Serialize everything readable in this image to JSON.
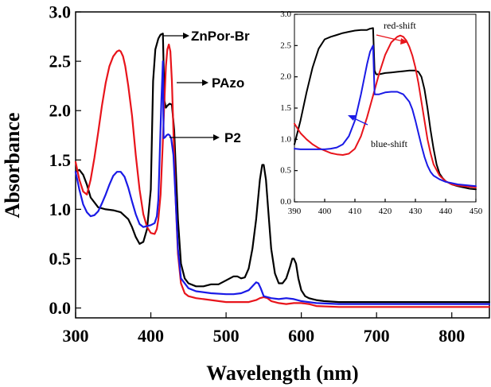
{
  "chart_data": {
    "type": "line",
    "xlabel": "Wavelength (nm)",
    "ylabel": "Absorbance",
    "xlim": [
      300,
      850
    ],
    "ylim": [
      -0.1,
      3.0
    ],
    "xticks": [
      "300",
      "400",
      "500",
      "600",
      "700",
      "800"
    ],
    "yticks": [
      "0.0",
      "0.5",
      "1.0",
      "1.5",
      "2.0",
      "2.5",
      "3.0"
    ],
    "grid": false,
    "colors": {
      "ZnPor-Br": "#000000",
      "PAzo": "#e8141b",
      "P2": "#1a1ae6"
    },
    "annotations": [
      {
        "text": "ZnPor-Br",
        "series": "ZnPor-Br"
      },
      {
        "text": "PAzo",
        "series": "PAzo"
      },
      {
        "text": "P2",
        "series": "P2"
      }
    ],
    "series": [
      {
        "name": "ZnPor-Br",
        "x": [
          300,
          305,
          310,
          315,
          320,
          330,
          340,
          350,
          360,
          370,
          375,
          380,
          385,
          390,
          395,
          400,
          403,
          406,
          410,
          413,
          416,
          418,
          420,
          422,
          425,
          428,
          431,
          433,
          436,
          440,
          445,
          450,
          460,
          470,
          480,
          490,
          500,
          505,
          510,
          515,
          520,
          525,
          530,
          535,
          540,
          545,
          548,
          550,
          553,
          556,
          560,
          565,
          570,
          575,
          580,
          585,
          588,
          590,
          593,
          596,
          600,
          605,
          610,
          615,
          620,
          630,
          650,
          700,
          750,
          800,
          850
        ],
        "y": [
          1.38,
          1.4,
          1.35,
          1.25,
          1.12,
          1.02,
          1.0,
          0.99,
          0.97,
          0.9,
          0.82,
          0.72,
          0.65,
          0.67,
          0.8,
          1.2,
          2.3,
          2.62,
          2.73,
          2.77,
          2.78,
          2.1,
          2.03,
          2.05,
          2.07,
          2.06,
          1.8,
          1.45,
          0.9,
          0.45,
          0.3,
          0.25,
          0.22,
          0.22,
          0.24,
          0.24,
          0.28,
          0.3,
          0.32,
          0.32,
          0.3,
          0.31,
          0.4,
          0.6,
          0.9,
          1.3,
          1.45,
          1.45,
          1.3,
          1.0,
          0.6,
          0.35,
          0.25,
          0.25,
          0.3,
          0.42,
          0.5,
          0.5,
          0.45,
          0.3,
          0.18,
          0.12,
          0.1,
          0.09,
          0.08,
          0.07,
          0.06,
          0.06,
          0.06,
          0.06,
          0.06
        ]
      },
      {
        "name": "PAzo",
        "x": [
          300,
          305,
          310,
          315,
          320,
          325,
          330,
          335,
          340,
          345,
          350,
          355,
          358,
          360,
          363,
          366,
          370,
          375,
          380,
          385,
          390,
          395,
          400,
          405,
          408,
          410,
          413,
          416,
          418,
          420,
          422,
          424,
          426,
          428,
          430,
          433,
          436,
          440,
          445,
          450,
          460,
          470,
          480,
          490,
          500,
          510,
          520,
          530,
          540,
          545,
          550,
          555,
          560,
          570,
          580,
          590,
          600,
          610,
          620,
          650,
          700,
          750,
          800,
          850
        ],
        "y": [
          1.48,
          1.3,
          1.18,
          1.15,
          1.3,
          1.52,
          1.78,
          2.05,
          2.28,
          2.45,
          2.55,
          2.6,
          2.61,
          2.6,
          2.55,
          2.45,
          2.25,
          1.95,
          1.55,
          1.2,
          0.95,
          0.82,
          0.76,
          0.75,
          0.8,
          0.9,
          1.15,
          1.7,
          2.1,
          2.45,
          2.62,
          2.67,
          2.6,
          2.3,
          1.8,
          1.1,
          0.55,
          0.25,
          0.15,
          0.12,
          0.1,
          0.09,
          0.08,
          0.07,
          0.06,
          0.06,
          0.06,
          0.06,
          0.08,
          0.1,
          0.11,
          0.1,
          0.07,
          0.05,
          0.04,
          0.05,
          0.05,
          0.04,
          0.02,
          0.01,
          0.01,
          0.01,
          0.01,
          0.01
        ]
      },
      {
        "name": "P2",
        "x": [
          300,
          305,
          310,
          315,
          320,
          325,
          330,
          335,
          340,
          345,
          350,
          355,
          360,
          365,
          370,
          375,
          380,
          385,
          390,
          395,
          400,
          405,
          408,
          410,
          412,
          414,
          416,
          417,
          419,
          421,
          423,
          425,
          427,
          430,
          433,
          436,
          440,
          450,
          460,
          480,
          500,
          510,
          520,
          530,
          535,
          540,
          543,
          546,
          550,
          560,
          570,
          580,
          590,
          600,
          620,
          650,
          700,
          750,
          800,
          850
        ],
        "y": [
          1.38,
          1.2,
          1.05,
          0.97,
          0.93,
          0.94,
          0.98,
          1.06,
          1.15,
          1.25,
          1.34,
          1.38,
          1.38,
          1.33,
          1.22,
          1.08,
          0.95,
          0.85,
          0.82,
          0.83,
          0.84,
          0.86,
          0.93,
          1.1,
          1.6,
          2.1,
          2.5,
          1.72,
          1.73,
          1.75,
          1.76,
          1.75,
          1.72,
          1.55,
          1.1,
          0.6,
          0.3,
          0.2,
          0.17,
          0.15,
          0.14,
          0.14,
          0.15,
          0.18,
          0.22,
          0.26,
          0.25,
          0.2,
          0.12,
          0.1,
          0.09,
          0.1,
          0.09,
          0.07,
          0.05,
          0.04,
          0.04,
          0.04,
          0.04,
          0.04
        ]
      }
    ],
    "inset": {
      "xlim": [
        390,
        450
      ],
      "ylim": [
        0.0,
        3.0
      ],
      "xticks": [
        "390",
        "400",
        "410",
        "420",
        "430",
        "440",
        "450"
      ],
      "yticks": [
        "0.0",
        "0.5",
        "1.0",
        "1.5",
        "2.0",
        "2.5",
        "3.0"
      ],
      "annotations": [
        {
          "text": "red-shift",
          "color": "#e8141b"
        },
        {
          "text": "blue-shift",
          "color": "#1a1ae6"
        }
      ],
      "series": [
        {
          "name": "ZnPor-Br",
          "x": [
            390,
            392,
            394,
            396,
            398,
            400,
            402,
            404,
            406,
            408,
            410,
            412,
            414,
            415,
            416,
            416.5,
            417,
            418,
            420,
            422,
            424,
            426,
            428,
            430,
            431,
            432,
            433,
            434,
            435,
            436,
            437,
            438,
            439,
            440,
            442,
            444,
            446,
            448,
            450
          ],
          "y": [
            0.92,
            1.3,
            1.75,
            2.15,
            2.45,
            2.6,
            2.64,
            2.67,
            2.7,
            2.72,
            2.74,
            2.75,
            2.75,
            2.77,
            2.78,
            2.1,
            2.04,
            2.04,
            2.06,
            2.07,
            2.08,
            2.09,
            2.1,
            2.1,
            2.08,
            2.0,
            1.8,
            1.5,
            1.15,
            0.85,
            0.6,
            0.45,
            0.38,
            0.33,
            0.28,
            0.25,
            0.23,
            0.21,
            0.2
          ]
        },
        {
          "name": "PAzo",
          "x": [
            390,
            392,
            394,
            396,
            398,
            400,
            402,
            404,
            406,
            408,
            410,
            412,
            414,
            416,
            418,
            420,
            422,
            424,
            425,
            426,
            427,
            428,
            429,
            430,
            431,
            432,
            433,
            434,
            435,
            436,
            438,
            440,
            442,
            444,
            446,
            448,
            450
          ],
          "y": [
            1.25,
            1.1,
            1.0,
            0.92,
            0.86,
            0.82,
            0.78,
            0.76,
            0.75,
            0.77,
            0.85,
            1.05,
            1.35,
            1.7,
            2.05,
            2.35,
            2.55,
            2.64,
            2.66,
            2.64,
            2.58,
            2.48,
            2.34,
            2.15,
            1.9,
            1.6,
            1.3,
            1.0,
            0.78,
            0.6,
            0.42,
            0.33,
            0.28,
            0.26,
            0.25,
            0.24,
            0.23
          ]
        },
        {
          "name": "P2",
          "x": [
            390,
            392,
            395,
            400,
            402,
            404,
            406,
            408,
            410,
            412,
            414,
            415,
            416,
            416.5,
            418,
            420,
            422,
            424,
            426,
            428,
            429,
            430,
            431,
            432,
            433,
            434,
            435,
            436,
            438,
            440,
            442,
            444,
            446,
            448,
            450
          ],
          "y": [
            0.85,
            0.84,
            0.84,
            0.84,
            0.85,
            0.87,
            0.92,
            1.05,
            1.3,
            1.72,
            2.2,
            2.4,
            2.5,
            1.72,
            1.72,
            1.75,
            1.76,
            1.76,
            1.72,
            1.6,
            1.48,
            1.3,
            1.1,
            0.9,
            0.72,
            0.58,
            0.48,
            0.42,
            0.36,
            0.32,
            0.3,
            0.28,
            0.27,
            0.26,
            0.25
          ]
        }
      ]
    }
  }
}
